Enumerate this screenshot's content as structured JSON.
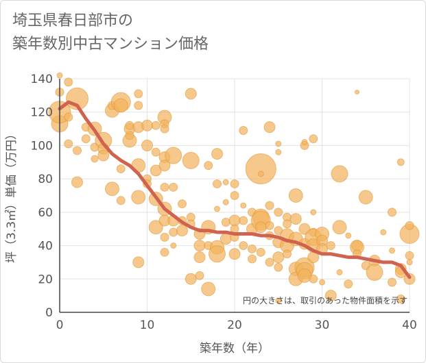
{
  "title_lines": [
    "埼玉県春日部市の",
    "築年数別中古マンション価格"
  ],
  "chart_data": {
    "type": "scatter",
    "xlabel": "築年数（年）",
    "ylabel": "坪（3.3㎡）単価（万円）",
    "xlim": [
      0,
      40
    ],
    "ylim": [
      0,
      140
    ],
    "x_ticks": [
      0,
      10,
      20,
      30,
      40
    ],
    "y_ticks": [
      0,
      20,
      40,
      60,
      80,
      100,
      120,
      140
    ],
    "grid": true,
    "note": "円の大きさは、取引のあった物件面積を示す",
    "colors": {
      "bubble": "#f2b35e",
      "bubble_edge": "#e09a3a",
      "line": "#d0634f",
      "grid": "#e3e3e3",
      "axis": "#444444"
    },
    "bubbles": [
      [
        0,
        113,
        12
      ],
      [
        0,
        120,
        16
      ],
      [
        0,
        132,
        6
      ],
      [
        0,
        142,
        4
      ],
      [
        1,
        138,
        6
      ],
      [
        1,
        101,
        6
      ],
      [
        1,
        117,
        6
      ],
      [
        2,
        128,
        16
      ],
      [
        2,
        97,
        6
      ],
      [
        2,
        78,
        8
      ],
      [
        3,
        111,
        6
      ],
      [
        3,
        104,
        6
      ],
      [
        4,
        110,
        10
      ],
      [
        4,
        99,
        6
      ],
      [
        4,
        92,
        5
      ],
      [
        5,
        103,
        12
      ],
      [
        5,
        98,
        8
      ],
      [
        5,
        94,
        8
      ],
      [
        6,
        121,
        10
      ],
      [
        6,
        124,
        6
      ],
      [
        6,
        74,
        10
      ],
      [
        7,
        126,
        14
      ],
      [
        7,
        124,
        10
      ],
      [
        7,
        86,
        6
      ],
      [
        7,
        67,
        6
      ],
      [
        8,
        110,
        8
      ],
      [
        8,
        112,
        6
      ],
      [
        8,
        103,
        10
      ],
      [
        8,
        106,
        6
      ],
      [
        9,
        131,
        6
      ],
      [
        9,
        124,
        6
      ],
      [
        9,
        111,
        8
      ],
      [
        9,
        88,
        10
      ],
      [
        9,
        69,
        10
      ],
      [
        9,
        30,
        8
      ],
      [
        10,
        112,
        8
      ],
      [
        10,
        100,
        8
      ],
      [
        10,
        80,
        6
      ],
      [
        10,
        77,
        6
      ],
      [
        11,
        112,
        6
      ],
      [
        11,
        96,
        6
      ],
      [
        11,
        85,
        8
      ],
      [
        11,
        68,
        10
      ],
      [
        11,
        51,
        10
      ],
      [
        12,
        117,
        10
      ],
      [
        12,
        113,
        6
      ],
      [
        12,
        110,
        6
      ],
      [
        12,
        93,
        8
      ],
      [
        12,
        88,
        8
      ],
      [
        12,
        75,
        6
      ],
      [
        12,
        62,
        10
      ],
      [
        12,
        55,
        8
      ],
      [
        12,
        45,
        6
      ],
      [
        12,
        36,
        6
      ],
      [
        13,
        94,
        12
      ],
      [
        13,
        75,
        6
      ],
      [
        13,
        55,
        8
      ],
      [
        13,
        48,
        6
      ],
      [
        13,
        40,
        4
      ],
      [
        14,
        65,
        6
      ],
      [
        14,
        55,
        6
      ],
      [
        14,
        49,
        8
      ],
      [
        15,
        131,
        8
      ],
      [
        15,
        91,
        12
      ],
      [
        15,
        57,
        6
      ],
      [
        15,
        53,
        6
      ],
      [
        15,
        20,
        8
      ],
      [
        16,
        47,
        8
      ],
      [
        16,
        40,
        8
      ],
      [
        16,
        33,
        8
      ],
      [
        16,
        22,
        6
      ],
      [
        17,
        88,
        6
      ],
      [
        17,
        51,
        10
      ],
      [
        17,
        40,
        6
      ],
      [
        17,
        14,
        10
      ],
      [
        18,
        95,
        8
      ],
      [
        18,
        77,
        6
      ],
      [
        18,
        39,
        10
      ],
      [
        18,
        35,
        12
      ],
      [
        18,
        62,
        4
      ],
      [
        19,
        66,
        4
      ],
      [
        19,
        78,
        4
      ],
      [
        19,
        54,
        6
      ],
      [
        19,
        44,
        8
      ],
      [
        20,
        77,
        6
      ],
      [
        20,
        70,
        6
      ],
      [
        20,
        55,
        8
      ],
      [
        20,
        50,
        6
      ],
      [
        20,
        45,
        6
      ],
      [
        20,
        35,
        8
      ],
      [
        21,
        109,
        6
      ],
      [
        21,
        64,
        4
      ],
      [
        21,
        55,
        6
      ],
      [
        21,
        40,
        6
      ],
      [
        22,
        60,
        6
      ],
      [
        22,
        50,
        8
      ],
      [
        22,
        38,
        6
      ],
      [
        22,
        32,
        6
      ],
      [
        23,
        86,
        22
      ],
      [
        23,
        83,
        4
      ],
      [
        23,
        57,
        12
      ],
      [
        23,
        55,
        14
      ],
      [
        23,
        51,
        8
      ],
      [
        23,
        36,
        6
      ],
      [
        24,
        111,
        8
      ],
      [
        24,
        64,
        6
      ],
      [
        24,
        52,
        6
      ],
      [
        24,
        46,
        6
      ],
      [
        24,
        30,
        6
      ],
      [
        25,
        101,
        4
      ],
      [
        25,
        96,
        4
      ],
      [
        25,
        60,
        6
      ],
      [
        25,
        49,
        6
      ],
      [
        25,
        42,
        8
      ],
      [
        25,
        33,
        8
      ],
      [
        25,
        27,
        6
      ],
      [
        25,
        7,
        4
      ],
      [
        26,
        57,
        6
      ],
      [
        26,
        53,
        6
      ],
      [
        26,
        46,
        10
      ],
      [
        26,
        40,
        10
      ],
      [
        26,
        35,
        6
      ],
      [
        27,
        70,
        10
      ],
      [
        27,
        56,
        8
      ],
      [
        27,
        44,
        10
      ],
      [
        27,
        26,
        10
      ],
      [
        27,
        20,
        10
      ],
      [
        28,
        100,
        6
      ],
      [
        28,
        102,
        4
      ],
      [
        28,
        50,
        8
      ],
      [
        28,
        41,
        8
      ],
      [
        28,
        27,
        14
      ],
      [
        28,
        25,
        12
      ],
      [
        28,
        22,
        10
      ],
      [
        29,
        104,
        6
      ],
      [
        29,
        60,
        4
      ],
      [
        29,
        48,
        6
      ],
      [
        29,
        45,
        12
      ],
      [
        29,
        40,
        10
      ],
      [
        29,
        33,
        8
      ],
      [
        29,
        20,
        6
      ],
      [
        30,
        47,
        10
      ],
      [
        30,
        43,
        8
      ],
      [
        30,
        38,
        8
      ],
      [
        30,
        18,
        4
      ],
      [
        31,
        40,
        6
      ],
      [
        31,
        10,
        8
      ],
      [
        32,
        83,
        12
      ],
      [
        32,
        51,
        10
      ],
      [
        32,
        24,
        4
      ],
      [
        33,
        46,
        4
      ],
      [
        33,
        17,
        6
      ],
      [
        34,
        40,
        8
      ],
      [
        34,
        39,
        10
      ],
      [
        34,
        35,
        6
      ],
      [
        34,
        132,
        3
      ],
      [
        35,
        69,
        10
      ],
      [
        35,
        28,
        6
      ],
      [
        36,
        31,
        8
      ],
      [
        36,
        24,
        12
      ],
      [
        37,
        48,
        4
      ],
      [
        38,
        60,
        6
      ],
      [
        38,
        37,
        4
      ],
      [
        38,
        18,
        6
      ],
      [
        39,
        90,
        5
      ],
      [
        39,
        26,
        8
      ],
      [
        39,
        24,
        8
      ],
      [
        39,
        8,
        6
      ],
      [
        40,
        47,
        14
      ],
      [
        40,
        52,
        6
      ],
      [
        40,
        34,
        6
      ],
      [
        40,
        30,
        4
      ],
      [
        40,
        20,
        8
      ]
    ],
    "trend_x": [
      0,
      1,
      2,
      3,
      4,
      5,
      6,
      7,
      8,
      9,
      10,
      11,
      12,
      13,
      14,
      15,
      16,
      17,
      18,
      19,
      20,
      21,
      22,
      23,
      24,
      25,
      26,
      27,
      28,
      29,
      30,
      31,
      32,
      33,
      34,
      35,
      36,
      37,
      38,
      39,
      40
    ],
    "trend_y": [
      122,
      126,
      124,
      116,
      109,
      101,
      95,
      91,
      88,
      83,
      76,
      69,
      62,
      58,
      54,
      51,
      49,
      49,
      48,
      48,
      47,
      47,
      47,
      46,
      46,
      45,
      43,
      42,
      40,
      37,
      35,
      35,
      34,
      33,
      33,
      32,
      31,
      30,
      30,
      28,
      21
    ]
  }
}
